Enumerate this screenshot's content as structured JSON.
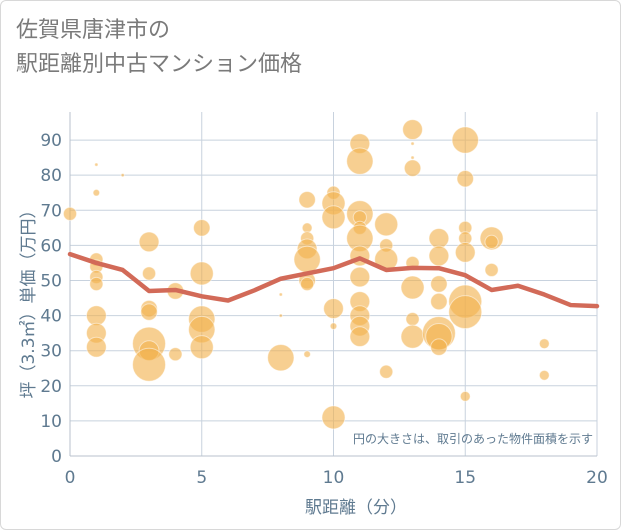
{
  "title": {
    "line1": "佐賀県唐津市の",
    "line2": "駅距離別中古マンション価格"
  },
  "chart_data": {
    "type": "scatter",
    "title": "佐賀県唐津市の駅距離別中古マンション価格",
    "xlabel": "駅距離（分）",
    "ylabel": "坪（3.3㎡）単価（万円）",
    "xlim": [
      0,
      20
    ],
    "ylim": [
      0,
      98
    ],
    "xticks": [
      0,
      5,
      10,
      15,
      20
    ],
    "yticks": [
      0,
      10,
      20,
      30,
      40,
      50,
      60,
      70,
      80,
      90
    ],
    "grid": true,
    "note": "円の大きさは、取引のあった物件面積を示す",
    "colors": {
      "bubble": "#f2b24d",
      "trend": "#d26a58",
      "axis_text": "#5f7a90",
      "grid": "#c8d2de"
    },
    "points": [
      {
        "x": 0,
        "y": 69,
        "r": 2
      },
      {
        "x": 1,
        "y": 83,
        "r": 0.5
      },
      {
        "x": 1,
        "y": 75,
        "r": 1
      },
      {
        "x": 1,
        "y": 56,
        "r": 2
      },
      {
        "x": 1,
        "y": 54,
        "r": 2
      },
      {
        "x": 1,
        "y": 51,
        "r": 2
      },
      {
        "x": 1,
        "y": 49,
        "r": 2
      },
      {
        "x": 1,
        "y": 40,
        "r": 3
      },
      {
        "x": 1,
        "y": 35,
        "r": 3
      },
      {
        "x": 1,
        "y": 31,
        "r": 3
      },
      {
        "x": 2,
        "y": 80,
        "r": 0.5
      },
      {
        "x": 3,
        "y": 61,
        "r": 3
      },
      {
        "x": 3,
        "y": 52,
        "r": 2
      },
      {
        "x": 3,
        "y": 42,
        "r": 2.5
      },
      {
        "x": 3,
        "y": 41,
        "r": 2.5
      },
      {
        "x": 3,
        "y": 32,
        "r": 5
      },
      {
        "x": 3,
        "y": 30,
        "r": 3
      },
      {
        "x": 3,
        "y": 26,
        "r": 5
      },
      {
        "x": 4,
        "y": 47,
        "r": 2.5
      },
      {
        "x": 4,
        "y": 29,
        "r": 2
      },
      {
        "x": 5,
        "y": 65,
        "r": 2.5
      },
      {
        "x": 5,
        "y": 52,
        "r": 3.5
      },
      {
        "x": 5,
        "y": 39,
        "r": 4
      },
      {
        "x": 5,
        "y": 36,
        "r": 4
      },
      {
        "x": 5,
        "y": 31,
        "r": 3.5
      },
      {
        "x": 8,
        "y": 46,
        "r": 0.5
      },
      {
        "x": 8,
        "y": 40,
        "r": 0.5
      },
      {
        "x": 8,
        "y": 28,
        "r": 4
      },
      {
        "x": 9,
        "y": 73,
        "r": 2.5
      },
      {
        "x": 9,
        "y": 65,
        "r": 1.5
      },
      {
        "x": 9,
        "y": 62,
        "r": 2
      },
      {
        "x": 9,
        "y": 59,
        "r": 3
      },
      {
        "x": 9,
        "y": 56,
        "r": 4
      },
      {
        "x": 9,
        "y": 50,
        "r": 2.5
      },
      {
        "x": 9,
        "y": 49,
        "r": 2
      },
      {
        "x": 9,
        "y": 29,
        "r": 1
      },
      {
        "x": 10,
        "y": 75,
        "r": 2
      },
      {
        "x": 10,
        "y": 72,
        "r": 3.5
      },
      {
        "x": 10,
        "y": 68,
        "r": 3.5
      },
      {
        "x": 10,
        "y": 42,
        "r": 3
      },
      {
        "x": 10,
        "y": 37,
        "r": 1
      },
      {
        "x": 10,
        "y": 11,
        "r": 3.5
      },
      {
        "x": 11,
        "y": 89,
        "r": 3
      },
      {
        "x": 11,
        "y": 84,
        "r": 4
      },
      {
        "x": 11,
        "y": 69,
        "r": 4
      },
      {
        "x": 11,
        "y": 68,
        "r": 2
      },
      {
        "x": 11,
        "y": 65,
        "r": 2
      },
      {
        "x": 11,
        "y": 62,
        "r": 4
      },
      {
        "x": 11,
        "y": 57,
        "r": 3
      },
      {
        "x": 11,
        "y": 51,
        "r": 3
      },
      {
        "x": 11,
        "y": 44,
        "r": 3
      },
      {
        "x": 11,
        "y": 40,
        "r": 3
      },
      {
        "x": 11,
        "y": 37,
        "r": 3
      },
      {
        "x": 11,
        "y": 34,
        "r": 3
      },
      {
        "x": 12,
        "y": 66,
        "r": 3.5
      },
      {
        "x": 12,
        "y": 60,
        "r": 2
      },
      {
        "x": 12,
        "y": 56,
        "r": 3.5
      },
      {
        "x": 12,
        "y": 24,
        "r": 2
      },
      {
        "x": 13,
        "y": 93,
        "r": 3
      },
      {
        "x": 13,
        "y": 89,
        "r": 0.5
      },
      {
        "x": 13,
        "y": 85,
        "r": 0.5
      },
      {
        "x": 13,
        "y": 82,
        "r": 2.5
      },
      {
        "x": 13,
        "y": 55,
        "r": 2
      },
      {
        "x": 13,
        "y": 48,
        "r": 3.5
      },
      {
        "x": 13,
        "y": 39,
        "r": 2
      },
      {
        "x": 13,
        "y": 34,
        "r": 3.5
      },
      {
        "x": 14,
        "y": 62,
        "r": 3
      },
      {
        "x": 14,
        "y": 57,
        "r": 3
      },
      {
        "x": 14,
        "y": 49,
        "r": 2.5
      },
      {
        "x": 14,
        "y": 44,
        "r": 2.5
      },
      {
        "x": 14,
        "y": 35,
        "r": 5
      },
      {
        "x": 14,
        "y": 34,
        "r": 4
      },
      {
        "x": 14,
        "y": 31,
        "r": 2.5
      },
      {
        "x": 15,
        "y": 90,
        "r": 4
      },
      {
        "x": 15,
        "y": 79,
        "r": 2.5
      },
      {
        "x": 15,
        "y": 65,
        "r": 2
      },
      {
        "x": 15,
        "y": 62,
        "r": 2
      },
      {
        "x": 15,
        "y": 58,
        "r": 3
      },
      {
        "x": 15,
        "y": 44,
        "r": 5
      },
      {
        "x": 15,
        "y": 41,
        "r": 5
      },
      {
        "x": 15,
        "y": 17,
        "r": 1.5
      },
      {
        "x": 16,
        "y": 62,
        "r": 3.5
      },
      {
        "x": 16,
        "y": 61,
        "r": 2
      },
      {
        "x": 16,
        "y": 53,
        "r": 2
      },
      {
        "x": 18,
        "y": 32,
        "r": 1.5
      },
      {
        "x": 18,
        "y": 23,
        "r": 1.5
      }
    ],
    "trend": {
      "x": [
        0,
        1,
        2,
        3,
        4,
        5,
        6,
        7,
        8,
        9,
        10,
        11,
        12,
        13,
        14,
        15,
        16,
        17,
        18,
        19,
        20
      ],
      "y": [
        57.5,
        55,
        53,
        47,
        47.3,
        45.5,
        44.3,
        47.2,
        50.5,
        52,
        53.5,
        56.3,
        53,
        53.6,
        53.5,
        51.5,
        47.3,
        48.5,
        46,
        43,
        42.7
      ]
    }
  }
}
